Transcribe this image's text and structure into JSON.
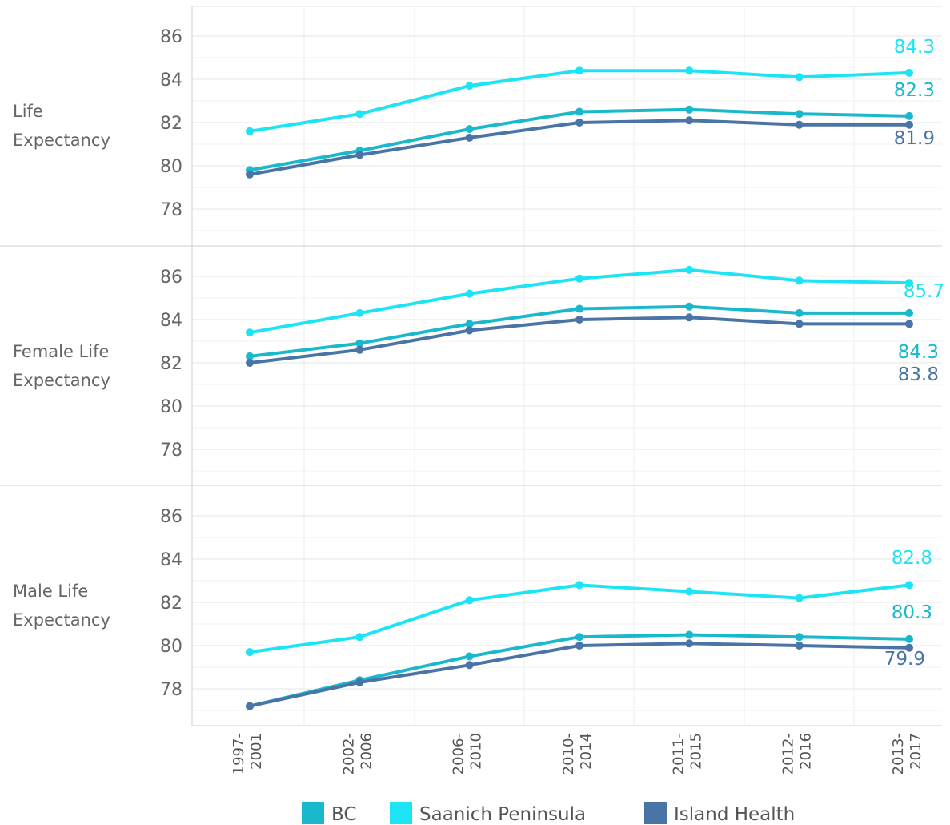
{
  "chart_data": {
    "type": "line",
    "categories": [
      "1997- 2001",
      "2002- 2006",
      "2006- 2010",
      "2010- 2014",
      "2011- 2015",
      "2012- 2016",
      "2013- 2017"
    ],
    "category_lines": [
      [
        "1997-",
        "2001"
      ],
      [
        "2002-",
        "2006"
      ],
      [
        "2006-",
        "2010"
      ],
      [
        "2010-",
        "2014"
      ],
      [
        "2011-",
        "2015"
      ],
      [
        "2012-",
        "2016"
      ],
      [
        "2013-",
        "2017"
      ]
    ],
    "ylim": [
      76.8,
      87.0
    ],
    "yticks": [
      78,
      80,
      82,
      84,
      86
    ],
    "legend": {
      "position": "bottom",
      "entries": [
        "BC",
        "Saanich Peninsula",
        "Island Health"
      ]
    },
    "colors": {
      "BC": "#19b8cc",
      "Saanich Peninsula": "#1de4f5",
      "Island Health": "#4a74a6"
    },
    "panels": [
      {
        "label_lines": [
          "Life",
          "Expectancy"
        ],
        "series": [
          {
            "name": "BC",
            "values": [
              79.8,
              80.7,
              81.7,
              82.5,
              82.6,
              82.4,
              82.3
            ],
            "end_label": "82.3"
          },
          {
            "name": "Saanich Peninsula",
            "values": [
              81.6,
              82.4,
              83.7,
              84.4,
              84.4,
              84.1,
              84.3
            ],
            "end_label": "84.3"
          },
          {
            "name": "Island Health",
            "values": [
              79.6,
              80.5,
              81.3,
              82.0,
              82.1,
              81.9,
              81.9
            ],
            "end_label": "81.9"
          }
        ]
      },
      {
        "label_lines": [
          "Female Life",
          "Expectancy"
        ],
        "series": [
          {
            "name": "BC",
            "values": [
              82.3,
              82.9,
              83.8,
              84.5,
              84.6,
              84.3,
              84.3
            ],
            "end_label": "84.3"
          },
          {
            "name": "Saanich Peninsula",
            "values": [
              83.4,
              84.3,
              85.2,
              85.9,
              86.3,
              85.8,
              85.7
            ],
            "end_label": "85.7"
          },
          {
            "name": "Island Health",
            "values": [
              82.0,
              82.6,
              83.5,
              84.0,
              84.1,
              83.8,
              83.8
            ],
            "end_label": "83.8"
          }
        ]
      },
      {
        "label_lines": [
          "Male Life",
          "Expectancy"
        ],
        "series": [
          {
            "name": "BC",
            "values": [
              77.2,
              78.4,
              79.5,
              80.4,
              80.5,
              80.4,
              80.3
            ],
            "end_label": "80.3"
          },
          {
            "name": "Saanich Peninsula",
            "values": [
              79.7,
              80.4,
              82.1,
              82.8,
              82.5,
              82.2,
              82.8
            ],
            "end_label": "82.8"
          },
          {
            "name": "Island Health",
            "values": [
              77.2,
              78.3,
              79.1,
              80.0,
              80.1,
              80.0,
              79.9
            ],
            "end_label": "79.9"
          }
        ]
      }
    ]
  }
}
